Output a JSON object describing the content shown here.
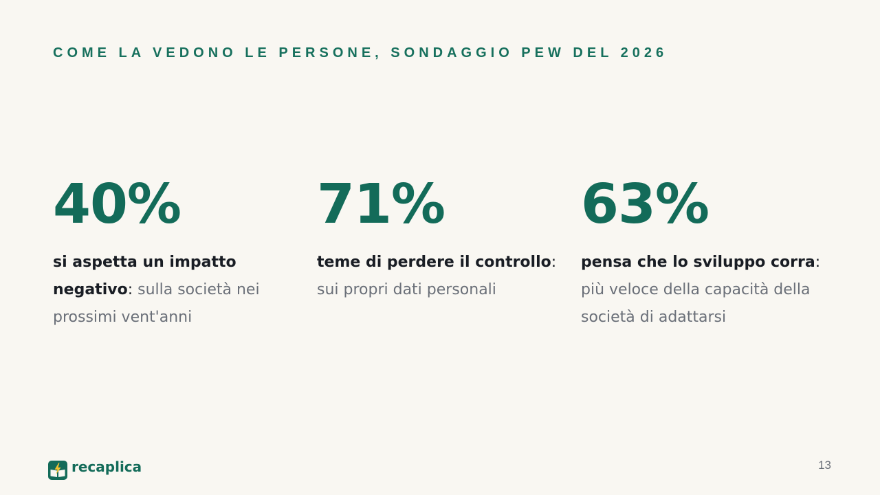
{
  "slide": {
    "kicker": "COME LA VEDONO LE PERSONE, SONDAGGIO PEW DEL 2026",
    "page_number": "13"
  },
  "stats": [
    {
      "value": "40%",
      "bold": "si aspetta un impatto negativo",
      "colon": ":",
      "text": " sulla società nei prossimi vent'anni"
    },
    {
      "value": "71%",
      "bold": "teme di perdere il controllo",
      "colon": ":",
      "text": " sui propri dati personali"
    },
    {
      "value": "63%",
      "bold": "pensa che lo sviluppo corra",
      "colon": ":",
      "text": " più veloce della capacità della società di adattarsi"
    }
  ],
  "brand": {
    "name": "recaplica",
    "logo_icon": "book-lightning-icon",
    "accent": "#136b59",
    "bolt_color": "#f2c230"
  }
}
